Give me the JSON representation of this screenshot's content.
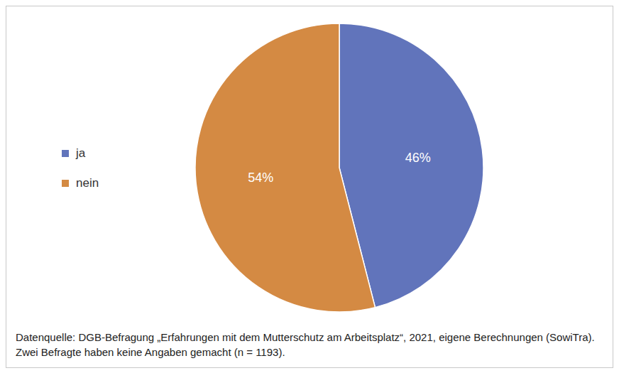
{
  "chart_data": {
    "type": "pie",
    "categories": [
      "ja",
      "nein"
    ],
    "values": [
      46,
      54
    ],
    "value_labels": [
      "46%",
      "54%"
    ],
    "colors": [
      "#6174bb",
      "#d48a43"
    ],
    "data_labels": true,
    "legend": "left",
    "note": "Datenquelle: DGB-Befragung „Erfahrungen mit dem Mutterschutz am Arbeitsplatz“, 2021, eigene Berechnungen (SowiTra). Zwei Befragte haben keine Angaben gemacht (n = 1193)."
  }
}
